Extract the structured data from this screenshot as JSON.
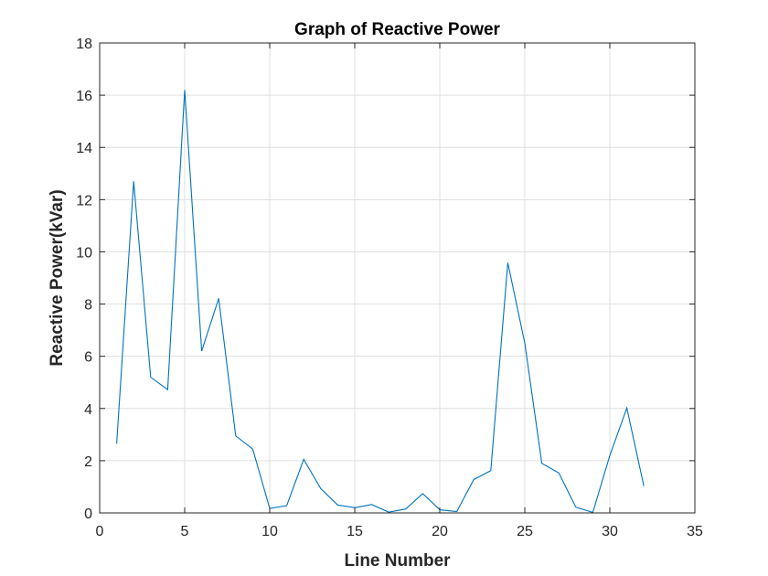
{
  "chart_data": {
    "type": "line",
    "title": "Graph of Reactive Power",
    "xlabel": "Line Number",
    "ylabel": "Reactive Power(kVar)",
    "xlim": [
      0,
      35
    ],
    "ylim": [
      0,
      18
    ],
    "xticks": [
      0,
      5,
      10,
      15,
      20,
      25,
      30,
      35
    ],
    "yticks": [
      0,
      2,
      4,
      6,
      8,
      10,
      12,
      14,
      16,
      18
    ],
    "grid": true,
    "series": [
      {
        "color": "#0072BD",
        "x": [
          1,
          2,
          3,
          4,
          5,
          6,
          7,
          8,
          9,
          10,
          11,
          12,
          13,
          14,
          15,
          16,
          17,
          18,
          19,
          20,
          21,
          22,
          23,
          24,
          25,
          26,
          27,
          28,
          29,
          30,
          31,
          32
        ],
        "y": [
          2.65,
          12.7,
          5.2,
          4.72,
          16.2,
          6.2,
          8.22,
          2.95,
          2.45,
          0.17,
          0.28,
          2.05,
          0.93,
          0.3,
          0.2,
          0.32,
          0.03,
          0.15,
          0.74,
          0.12,
          0.05,
          1.28,
          1.62,
          9.58,
          6.5,
          1.9,
          1.53,
          0.22,
          0.02,
          2.2,
          4.02,
          1.03
        ]
      }
    ]
  }
}
